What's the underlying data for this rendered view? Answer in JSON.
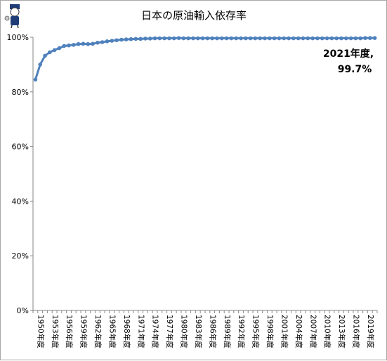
{
  "chart_data": {
    "type": "line",
    "title": "日本の原油輸入依存率",
    "xlabel": "",
    "ylabel": "",
    "ylim": [
      0,
      100
    ],
    "y_ticks": [
      "0%",
      "20%",
      "40%",
      "60%",
      "80%",
      "100%"
    ],
    "y_tick_values": [
      0,
      20,
      40,
      60,
      80,
      100
    ],
    "grid": false,
    "legend": "none",
    "line_color": "#4f81bd",
    "x_tick_labels": [
      "1950年度",
      "1953年度",
      "1956年度",
      "1959年度",
      "1962年度",
      "1965年度",
      "1968年度",
      "1971年度",
      "1974年度",
      "1977年度",
      "1980年度",
      "1983年度",
      "1986年度",
      "1989年度",
      "1992年度",
      "1995年度",
      "1998年度",
      "2001年度",
      "2004年度",
      "2007年度",
      "2010年度",
      "2013年度",
      "2016年度",
      "2019年度"
    ],
    "x": [
      1950,
      1951,
      1952,
      1953,
      1954,
      1955,
      1956,
      1957,
      1958,
      1959,
      1960,
      1961,
      1962,
      1963,
      1964,
      1965,
      1966,
      1967,
      1968,
      1969,
      1970,
      1971,
      1972,
      1973,
      1974,
      1975,
      1976,
      1977,
      1978,
      1979,
      1980,
      1981,
      1982,
      1983,
      1984,
      1985,
      1986,
      1987,
      1988,
      1989,
      1990,
      1991,
      1992,
      1993,
      1994,
      1995,
      1996,
      1997,
      1998,
      1999,
      2000,
      2001,
      2002,
      2003,
      2004,
      2005,
      2006,
      2007,
      2008,
      2009,
      2010,
      2011,
      2012,
      2013,
      2014,
      2015,
      2016,
      2017,
      2018,
      2019,
      2020,
      2021
    ],
    "series": [
      {
        "values": [
          84.5,
          90.0,
          93.2,
          94.5,
          95.3,
          96.0,
          96.8,
          97.0,
          97.2,
          97.5,
          97.6,
          97.5,
          97.6,
          98.0,
          98.2,
          98.5,
          98.7,
          98.9,
          99.1,
          99.2,
          99.3,
          99.4,
          99.4,
          99.5,
          99.5,
          99.6,
          99.6,
          99.6,
          99.6,
          99.6,
          99.7,
          99.6,
          99.6,
          99.6,
          99.6,
          99.6,
          99.6,
          99.6,
          99.6,
          99.6,
          99.6,
          99.6,
          99.6,
          99.6,
          99.6,
          99.6,
          99.6,
          99.6,
          99.6,
          99.6,
          99.6,
          99.6,
          99.6,
          99.6,
          99.6,
          99.6,
          99.6,
          99.6,
          99.6,
          99.6,
          99.6,
          99.6,
          99.6,
          99.6,
          99.6,
          99.6,
          99.6,
          99.6,
          99.6,
          99.7,
          99.7,
          99.7
        ]
      }
    ],
    "annotation": {
      "line1": "2021年度,",
      "line2": "99.7%",
      "year": 2021,
      "value": 99.7
    }
  }
}
